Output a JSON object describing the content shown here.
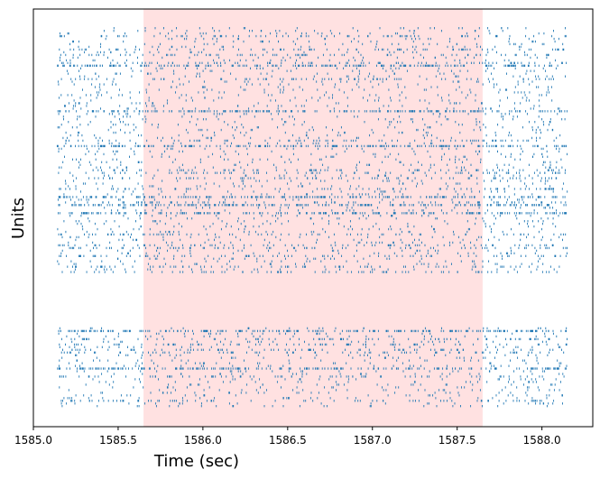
{
  "chart_data": {
    "type": "raster",
    "title": "",
    "xlabel": "Time (sec)",
    "ylabel": "Units",
    "xlim": [
      1585.0,
      1588.3
    ],
    "xticks": [
      1585.0,
      1585.5,
      1586.0,
      1586.5,
      1587.0,
      1587.5,
      1588.0
    ],
    "xtick_labels": [
      "1585.0",
      "1585.5",
      "1586.0",
      "1586.5",
      "1587.0",
      "1587.5",
      "1588.0"
    ],
    "spike_window": [
      1585.14,
      1588.15
    ],
    "highlight": {
      "start": 1585.65,
      "end": 1587.65,
      "color": "#ffe1e1"
    },
    "spike_color": "#1f77b4",
    "grid": false,
    "groups": [
      {
        "units": 92,
        "unit_offset": 0
      },
      {
        "units": 30,
        "unit_offset": 112
      }
    ],
    "total_unit_slots": 142
  }
}
